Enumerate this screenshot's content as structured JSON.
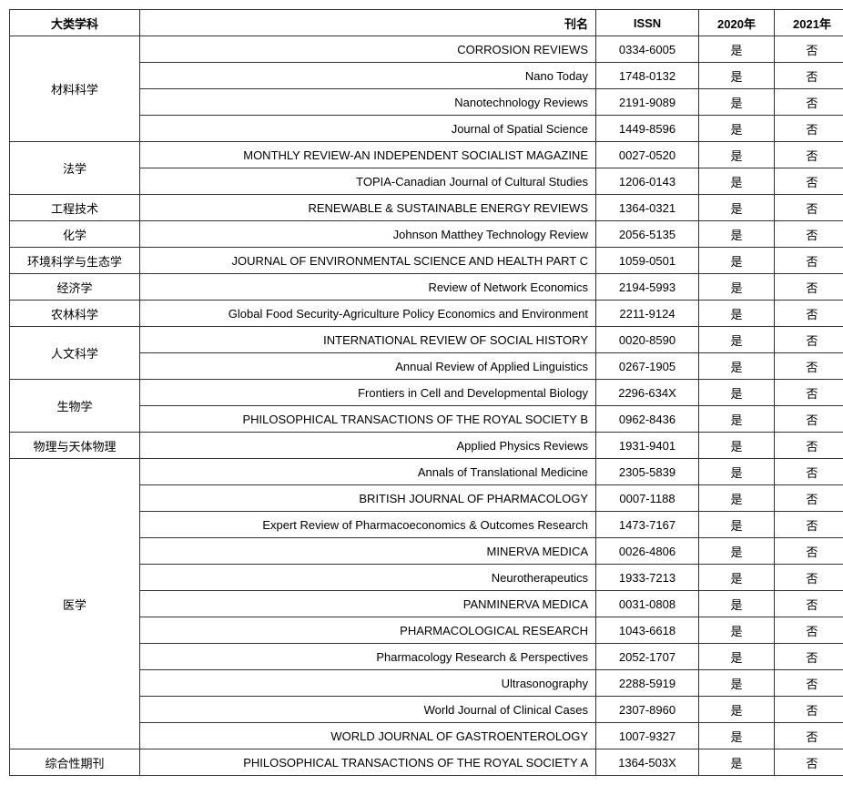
{
  "headers": {
    "category": "大类学科",
    "title": "刊名",
    "issn": "ISSN",
    "y2020": "2020年",
    "y2021": "2021年"
  },
  "groups": [
    {
      "category": "材料科学",
      "rows": [
        {
          "title": "CORROSION REVIEWS",
          "issn": "0334-6005",
          "y2020": "是",
          "y2021": "否"
        },
        {
          "title": "Nano Today",
          "issn": "1748-0132",
          "y2020": "是",
          "y2021": "否"
        },
        {
          "title": "Nanotechnology Reviews",
          "issn": "2191-9089",
          "y2020": "是",
          "y2021": "否"
        },
        {
          "title": "Journal of Spatial Science",
          "issn": "1449-8596",
          "y2020": "是",
          "y2021": "否"
        }
      ]
    },
    {
      "category": "法学",
      "rows": [
        {
          "title": "MONTHLY REVIEW-AN INDEPENDENT SOCIALIST MAGAZINE",
          "issn": "0027-0520",
          "y2020": "是",
          "y2021": "否"
        },
        {
          "title": "TOPIA-Canadian Journal of Cultural Studies",
          "issn": "1206-0143",
          "y2020": "是",
          "y2021": "否"
        }
      ]
    },
    {
      "category": "工程技术",
      "rows": [
        {
          "title": "RENEWABLE & SUSTAINABLE ENERGY REVIEWS",
          "issn": "1364-0321",
          "y2020": "是",
          "y2021": "否"
        }
      ]
    },
    {
      "category": "化学",
      "rows": [
        {
          "title": "Johnson Matthey Technology Review",
          "issn": "2056-5135",
          "y2020": "是",
          "y2021": "否"
        }
      ]
    },
    {
      "category": "环境科学与生态学",
      "rows": [
        {
          "title": "JOURNAL OF ENVIRONMENTAL SCIENCE AND HEALTH PART C",
          "issn": "1059-0501",
          "y2020": "是",
          "y2021": "否"
        }
      ]
    },
    {
      "category": "经济学",
      "rows": [
        {
          "title": "Review of Network Economics",
          "issn": "2194-5993",
          "y2020": "是",
          "y2021": "否"
        }
      ]
    },
    {
      "category": "农林科学",
      "rows": [
        {
          "title": "Global Food Security-Agriculture Policy Economics and Environment",
          "issn": "2211-9124",
          "y2020": "是",
          "y2021": "否"
        }
      ]
    },
    {
      "category": "人文科学",
      "rows": [
        {
          "title": "INTERNATIONAL REVIEW OF SOCIAL HISTORY",
          "issn": "0020-8590",
          "y2020": "是",
          "y2021": "否"
        },
        {
          "title": "Annual Review of Applied Linguistics",
          "issn": "0267-1905",
          "y2020": "是",
          "y2021": "否"
        }
      ]
    },
    {
      "category": "生物学",
      "rows": [
        {
          "title": "Frontiers in Cell and Developmental Biology",
          "issn": "2296-634X",
          "y2020": "是",
          "y2021": "否"
        },
        {
          "title": "PHILOSOPHICAL TRANSACTIONS OF THE ROYAL SOCIETY B",
          "issn": "0962-8436",
          "y2020": "是",
          "y2021": "否"
        }
      ]
    },
    {
      "category": "物理与天体物理",
      "rows": [
        {
          "title": "Applied Physics Reviews",
          "issn": "1931-9401",
          "y2020": "是",
          "y2021": "否"
        }
      ]
    },
    {
      "category": "医学",
      "rows": [
        {
          "title": "Annals of Translational Medicine",
          "issn": "2305-5839",
          "y2020": "是",
          "y2021": "否"
        },
        {
          "title": "BRITISH JOURNAL OF PHARMACOLOGY",
          "issn": "0007-1188",
          "y2020": "是",
          "y2021": "否"
        },
        {
          "title": "Expert Review of Pharmacoeconomics & Outcomes Research",
          "issn": "1473-7167",
          "y2020": "是",
          "y2021": "否"
        },
        {
          "title": "MINERVA MEDICA",
          "issn": "0026-4806",
          "y2020": "是",
          "y2021": "否"
        },
        {
          "title": "Neurotherapeutics",
          "issn": "1933-7213",
          "y2020": "是",
          "y2021": "否"
        },
        {
          "title": "PANMINERVA MEDICA",
          "issn": "0031-0808",
          "y2020": "是",
          "y2021": "否"
        },
        {
          "title": "PHARMACOLOGICAL RESEARCH",
          "issn": "1043-6618",
          "y2020": "是",
          "y2021": "否"
        },
        {
          "title": "Pharmacology Research & Perspectives",
          "issn": "2052-1707",
          "y2020": "是",
          "y2021": "否"
        },
        {
          "title": "Ultrasonography",
          "issn": "2288-5919",
          "y2020": "是",
          "y2021": "否"
        },
        {
          "title": "World Journal of Clinical Cases",
          "issn": "2307-8960",
          "y2020": "是",
          "y2021": "否"
        },
        {
          "title": "WORLD JOURNAL OF GASTROENTEROLOGY",
          "issn": "1007-9327",
          "y2020": "是",
          "y2021": "否"
        }
      ]
    },
    {
      "category": "综合性期刊",
      "rows": [
        {
          "title": "PHILOSOPHICAL TRANSACTIONS OF THE ROYAL SOCIETY A",
          "issn": "1364-503X",
          "y2020": "是",
          "y2021": "否"
        }
      ]
    }
  ]
}
